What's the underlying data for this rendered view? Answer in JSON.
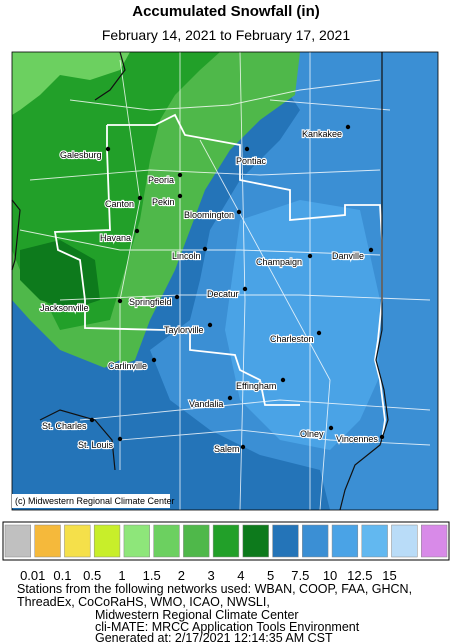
{
  "header": {
    "title": "Accumulated Snowfall (in)",
    "subtitle": "February 14, 2021 to February 17, 2021"
  },
  "map": {
    "credit": "(c) Midwestern Regional Climate Center",
    "cities": [
      "Kankakee",
      "Pontiac",
      "Galesburg",
      "Peoria",
      "Canton",
      "Pekin",
      "Bloomington",
      "Havana",
      "Danville",
      "Champaign",
      "Lincoln",
      "Jacksonville",
      "Springfield",
      "Decatur",
      "Taylorville",
      "Charleston",
      "Carlinville",
      "Effingham",
      "Vandalia",
      "St. Charles",
      "Olney",
      "Vincennes",
      "St. Louis",
      "Salem"
    ]
  },
  "legend": {
    "colors": [
      "#c0c0c0",
      "#f5b93b",
      "#f5e04a",
      "#c8ee2a",
      "#8ee67a",
      "#6cd060",
      "#4fb84a",
      "#22a029",
      "#0d7a1c",
      "#2474b8",
      "#3b8fd4",
      "#4aa3e6",
      "#62b8f0",
      "#b9dcf8",
      "#d88ae8"
    ],
    "labels": [
      "0.01",
      "0.1",
      "0.5",
      "1",
      "1.5",
      "2",
      "3",
      "4",
      "5",
      "7.5",
      "10",
      "12.5",
      "15"
    ]
  },
  "footer": {
    "lines": [
      "Stations from the following networks used: WBAN, COOP, FAA, GHCN,",
      "ThreadEx, CoCoRaHS, WMO, ICAO, NWSLI,",
      "Midwestern Regional Climate Center",
      "cli-MATE: MRCC Application Tools Environment",
      "Generated at: 2/17/2021 12:14:35 AM CST"
    ]
  }
}
